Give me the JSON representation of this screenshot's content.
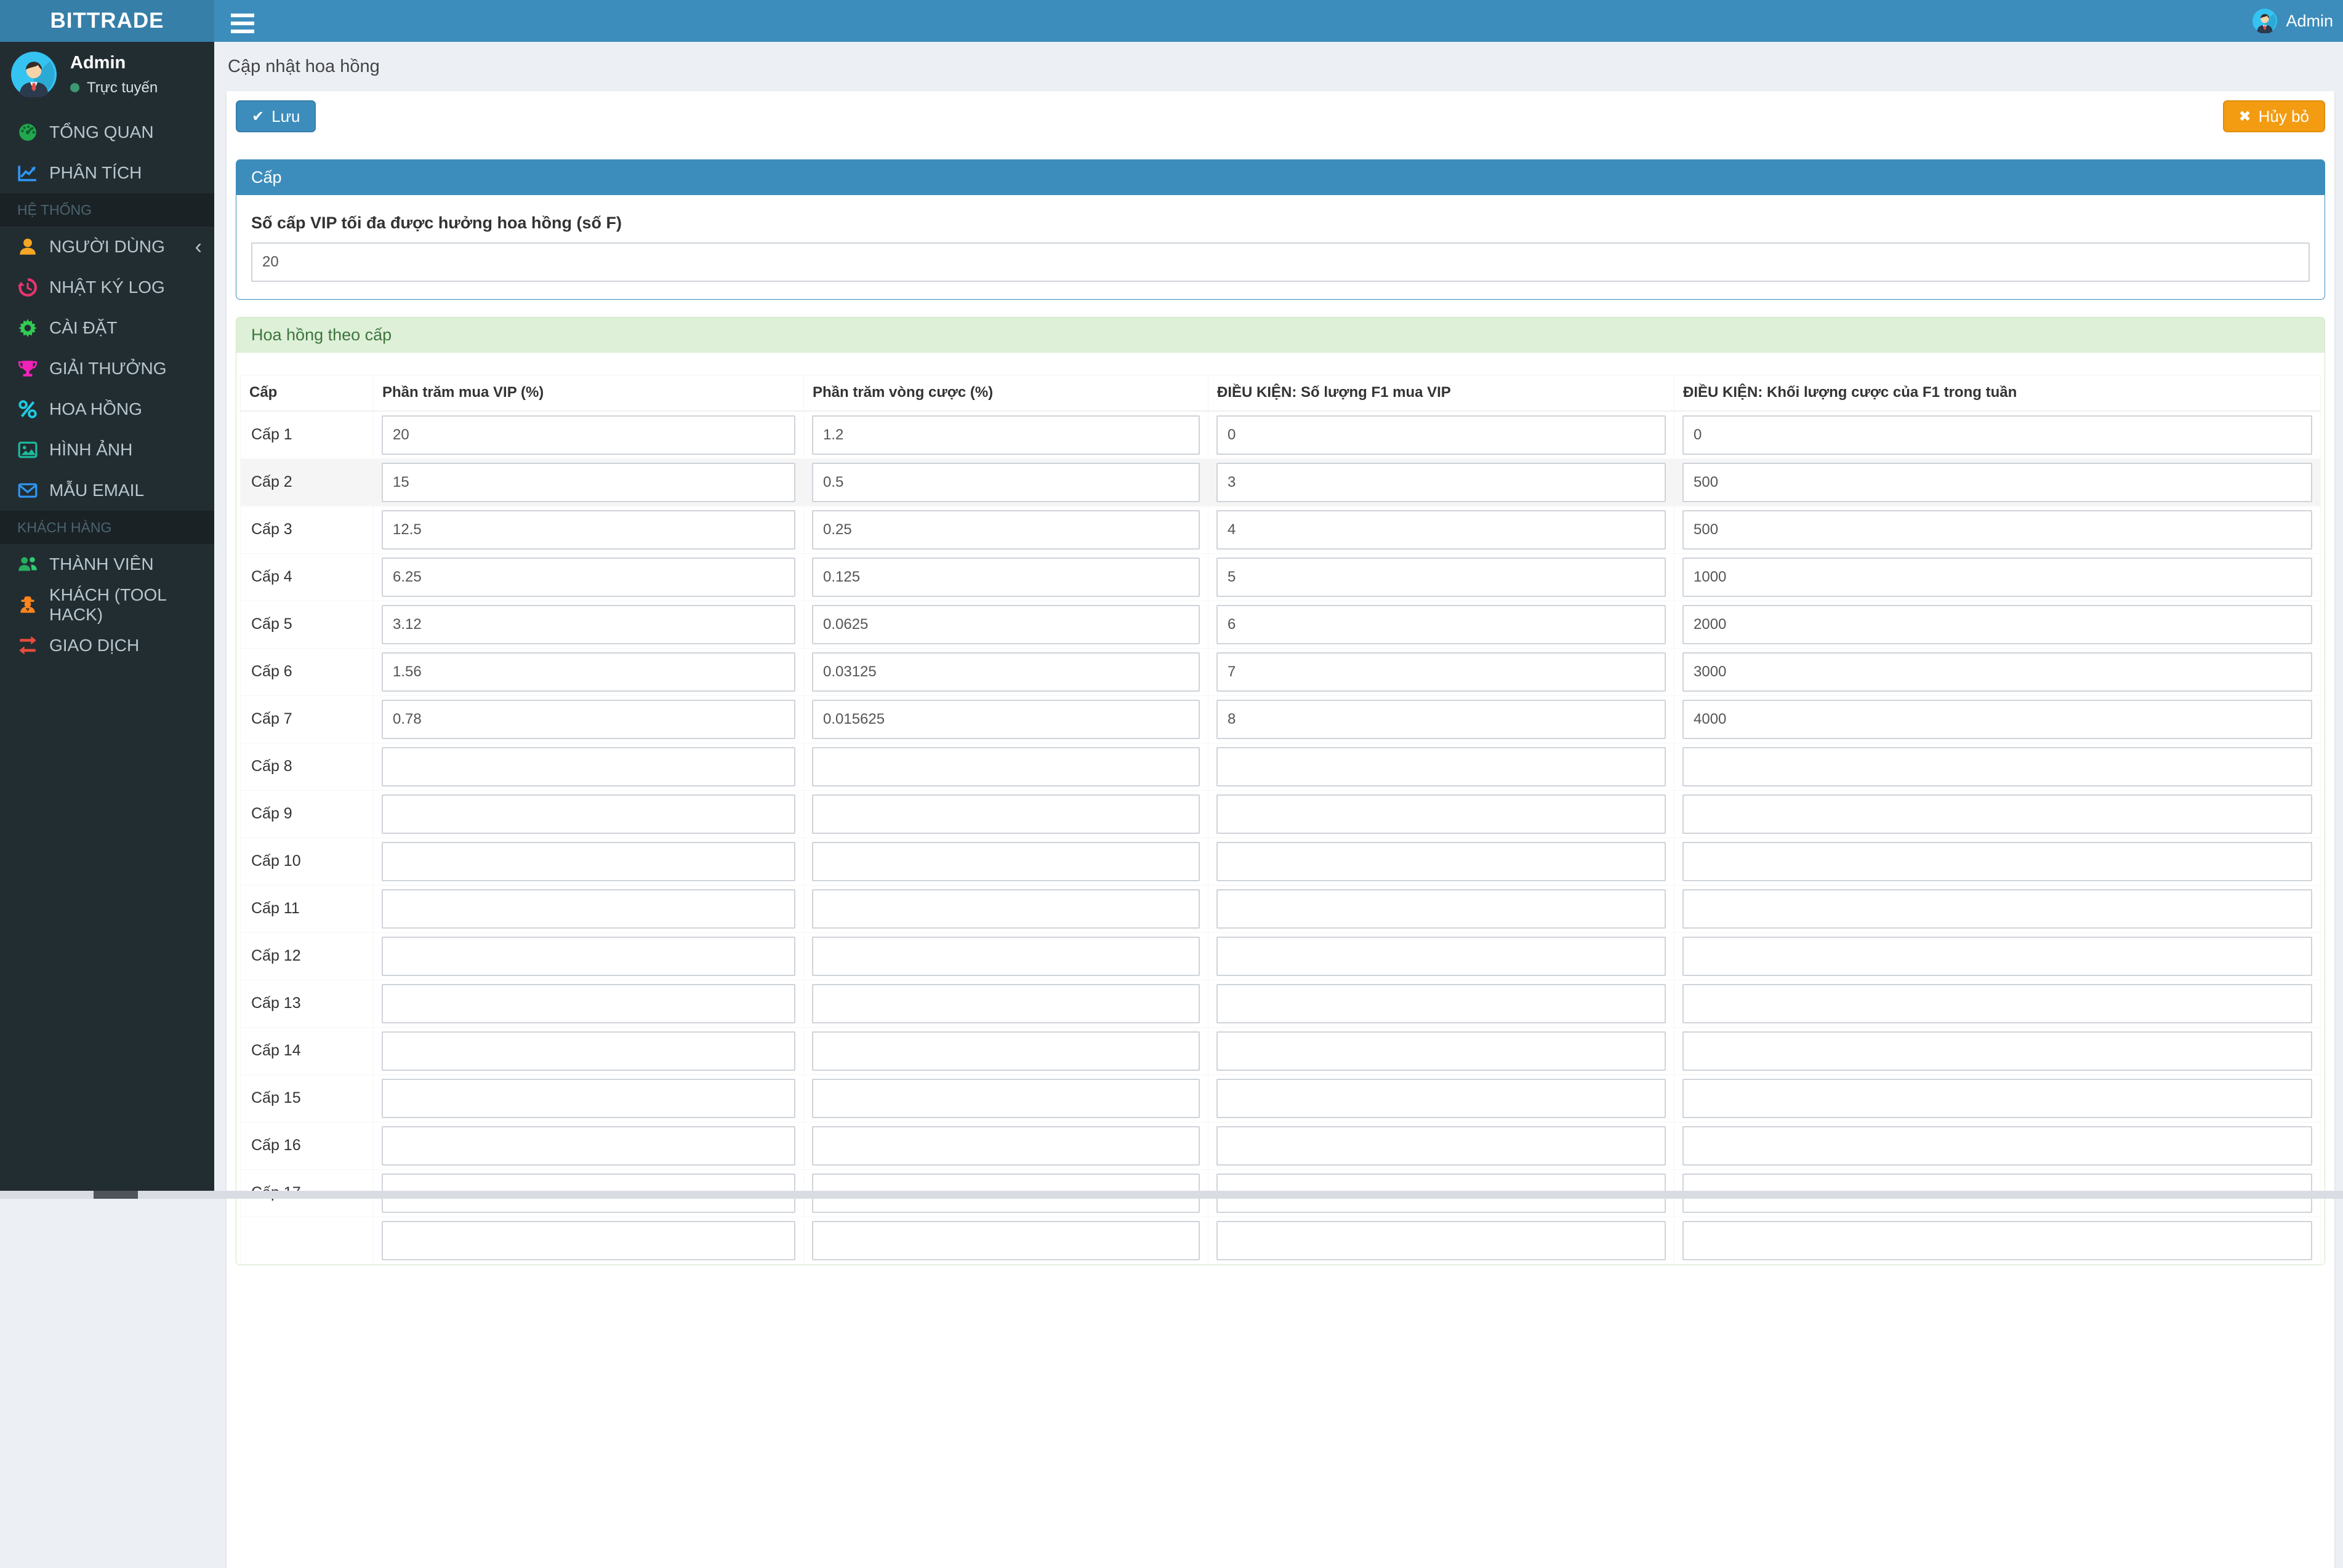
{
  "navbar": {
    "brand": "BITTRADE",
    "user_name": "Admin"
  },
  "sidebar": {
    "user": {
      "name": "Admin",
      "status": "Trực tuyến"
    },
    "sections": [
      {
        "header": "",
        "items": [
          {
            "icon": "dashboard-icon",
            "label": "TỔNG QUAN"
          },
          {
            "icon": "analytics-icon",
            "label": "PHÂN TÍCH"
          }
        ]
      },
      {
        "header": "HỆ THỐNG",
        "items": [
          {
            "icon": "user-icon",
            "label": "NGƯỜI DÙNG",
            "chevron": "‹"
          },
          {
            "icon": "history-icon",
            "label": "NHẬT KÝ LOG"
          },
          {
            "icon": "gear-icon",
            "label": "CÀI ĐẶT"
          },
          {
            "icon": "trophy-icon",
            "label": "GIẢI THƯỞNG"
          },
          {
            "icon": "percent-icon",
            "label": "HOA HỒNG"
          },
          {
            "icon": "image-icon",
            "label": "HÌNH ẢNH"
          },
          {
            "icon": "email-icon",
            "label": "MẪU EMAIL"
          }
        ]
      },
      {
        "header": "KHÁCH HÀNG",
        "items": [
          {
            "icon": "users-icon",
            "label": "THÀNH VIÊN"
          },
          {
            "icon": "user-secret-icon",
            "label": "KHÁCH (TOOL HACK)"
          },
          {
            "icon": "exchange-icon",
            "label": "GIAO DỊCH"
          }
        ]
      }
    ]
  },
  "page": {
    "title": "Cập nhật hoa hồng"
  },
  "toolbar": {
    "save": "Lưu",
    "cancel": "Hủy bỏ",
    "save_icon": "✔",
    "cancel_icon": "✖"
  },
  "panel_cap": {
    "title": "Cấp",
    "field_label": "Số cấp VIP tối đa được hưởng hoa hồng (số F)",
    "field_value": "20"
  },
  "panel_commission": {
    "title": "Hoa hồng theo cấp",
    "columns": [
      "Cấp",
      "Phần trăm mua VIP (%)",
      "Phần trăm vòng cược (%)",
      "ĐIỀU KIỆN: Số lượng F1 mua VIP",
      "ĐIỀU KIỆN: Khối lượng cược của F1 trong tuần"
    ],
    "rows": [
      {
        "label": "Cấp 1",
        "vip": "20",
        "bet": "1.2",
        "f1": "0",
        "volume": "0",
        "highlight": false
      },
      {
        "label": "Cấp 2",
        "vip": "15",
        "bet": "0.5",
        "f1": "3",
        "volume": "500",
        "highlight": true
      },
      {
        "label": "Cấp 3",
        "vip": "12.5",
        "bet": "0.25",
        "f1": "4",
        "volume": "500",
        "highlight": false
      },
      {
        "label": "Cấp 4",
        "vip": "6.25",
        "bet": "0.125",
        "f1": "5",
        "volume": "1000",
        "highlight": false
      },
      {
        "label": "Cấp 5",
        "vip": "3.12",
        "bet": "0.0625",
        "f1": "6",
        "volume": "2000",
        "highlight": false
      },
      {
        "label": "Cấp 6",
        "vip": "1.56",
        "bet": "0.03125",
        "f1": "7",
        "volume": "3000",
        "highlight": false
      },
      {
        "label": "Cấp 7",
        "vip": "0.78",
        "bet": "0.015625",
        "f1": "8",
        "volume": "4000",
        "highlight": false
      },
      {
        "label": "Cấp 8",
        "vip": "",
        "bet": "",
        "f1": "",
        "volume": "",
        "highlight": false
      },
      {
        "label": "Cấp 9",
        "vip": "",
        "bet": "",
        "f1": "",
        "volume": "",
        "highlight": false
      },
      {
        "label": "Cấp 10",
        "vip": "",
        "bet": "",
        "f1": "",
        "volume": "",
        "highlight": false
      },
      {
        "label": "Cấp 11",
        "vip": "",
        "bet": "",
        "f1": "",
        "volume": "",
        "highlight": false
      },
      {
        "label": "Cấp 12",
        "vip": "",
        "bet": "",
        "f1": "",
        "volume": "",
        "highlight": false
      },
      {
        "label": "Cấp 13",
        "vip": "",
        "bet": "",
        "f1": "",
        "volume": "",
        "highlight": false
      },
      {
        "label": "Cấp 14",
        "vip": "",
        "bet": "",
        "f1": "",
        "volume": "",
        "highlight": false
      },
      {
        "label": "Cấp 15",
        "vip": "",
        "bet": "",
        "f1": "",
        "volume": "",
        "highlight": false
      },
      {
        "label": "Cấp 16",
        "vip": "",
        "bet": "",
        "f1": "",
        "volume": "",
        "highlight": false
      },
      {
        "label": "Cấp 17",
        "vip": "",
        "bet": "",
        "f1": "",
        "volume": "",
        "highlight": false
      }
    ]
  },
  "colors": {
    "navbar": "#3c8dbc",
    "brand_bg": "#367fa9",
    "sidebar": "#222d32",
    "panel_primary": "#3c8dbc",
    "panel_success_bg": "#dff0d8",
    "panel_success_text": "#3c763d",
    "save_btn": "#3c8dbc",
    "cancel_btn": "#f39c12",
    "content_bg": "#ecf0f5",
    "online_dot": "#3d9970"
  }
}
